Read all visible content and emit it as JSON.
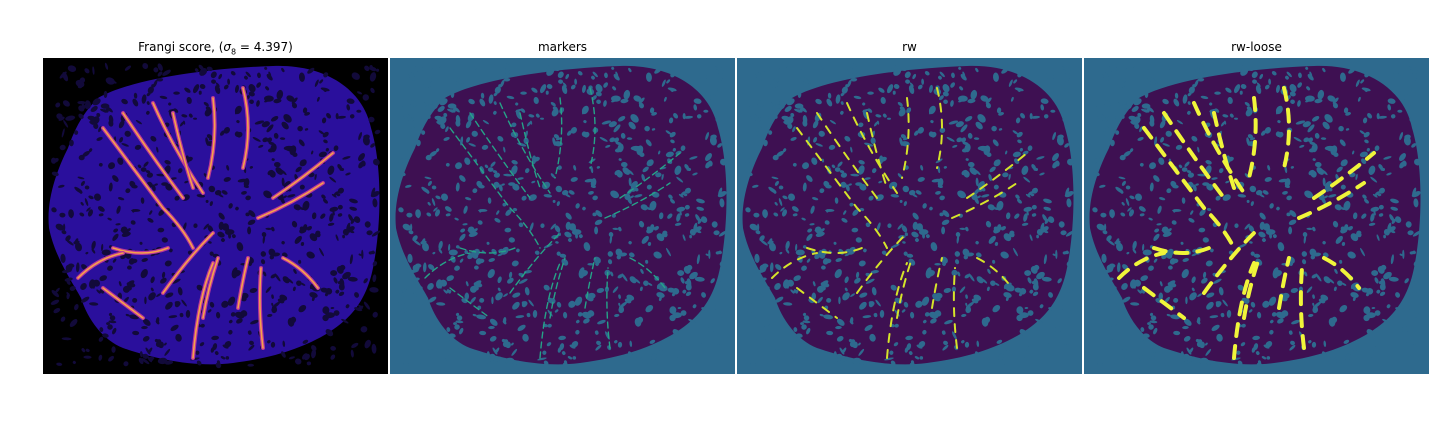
{
  "panels": [
    {
      "id": "frangi",
      "title_prefix": "Frangi score, (",
      "title_sigma": "σ",
      "title_sub": "8",
      "title_suffix": " = 4.397)",
      "colors": {
        "background": "#000000",
        "tissue": "#2a0f9c",
        "holes": "#120a3a",
        "vessel_bright": "#f6a24a",
        "vessel_mid": "#b8379a"
      }
    },
    {
      "id": "markers",
      "title": "markers",
      "colors": {
        "background": "#2e6a8e",
        "tissue": "#3e1052",
        "holes": "#2e6a8e",
        "vessel": "#25a388"
      }
    },
    {
      "id": "rw",
      "title": "rw",
      "colors": {
        "background": "#2e6a8e",
        "tissue": "#3e1052",
        "holes": "#2e6a8e",
        "vessel": "#d6e42a"
      }
    },
    {
      "id": "rw-loose",
      "title": "rw-loose",
      "colors": {
        "background": "#2e6a8e",
        "tissue": "#3e1052",
        "holes": "#2e6a8e",
        "vessel": "#f0f53a"
      }
    }
  ]
}
